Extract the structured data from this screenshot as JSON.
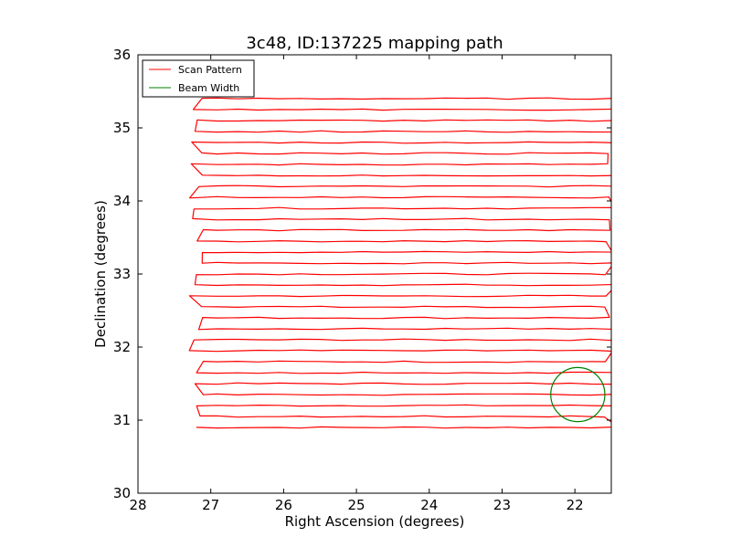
{
  "chart_data": {
    "type": "line",
    "title": "3c48, ID:137225 mapping path",
    "xlabel": "Right Ascension (degrees)",
    "ylabel": "Declination (degrees)",
    "xlim": [
      28,
      21.5
    ],
    "ylim": [
      30,
      36
    ],
    "x_inverted": true,
    "xticks": [
      28,
      27,
      26,
      25,
      24,
      23,
      22
    ],
    "yticks": [
      30,
      31,
      32,
      33,
      34,
      35,
      36
    ],
    "grid": false,
    "legend_position": "top-left",
    "colors": {
      "scan": "#ff0000",
      "beam": "#008000"
    },
    "series": [
      {
        "name": "Scan Pattern",
        "kind": "raster-scan",
        "ra_range": [
          27.2,
          21.5
        ],
        "dec_start": 30.9,
        "dec_end": 35.4,
        "dec_step": 0.15
      },
      {
        "name": "Beam Width",
        "kind": "circle",
        "center_ra": 21.96,
        "center_dec": 31.35,
        "radius_deg": 0.37
      }
    ]
  }
}
